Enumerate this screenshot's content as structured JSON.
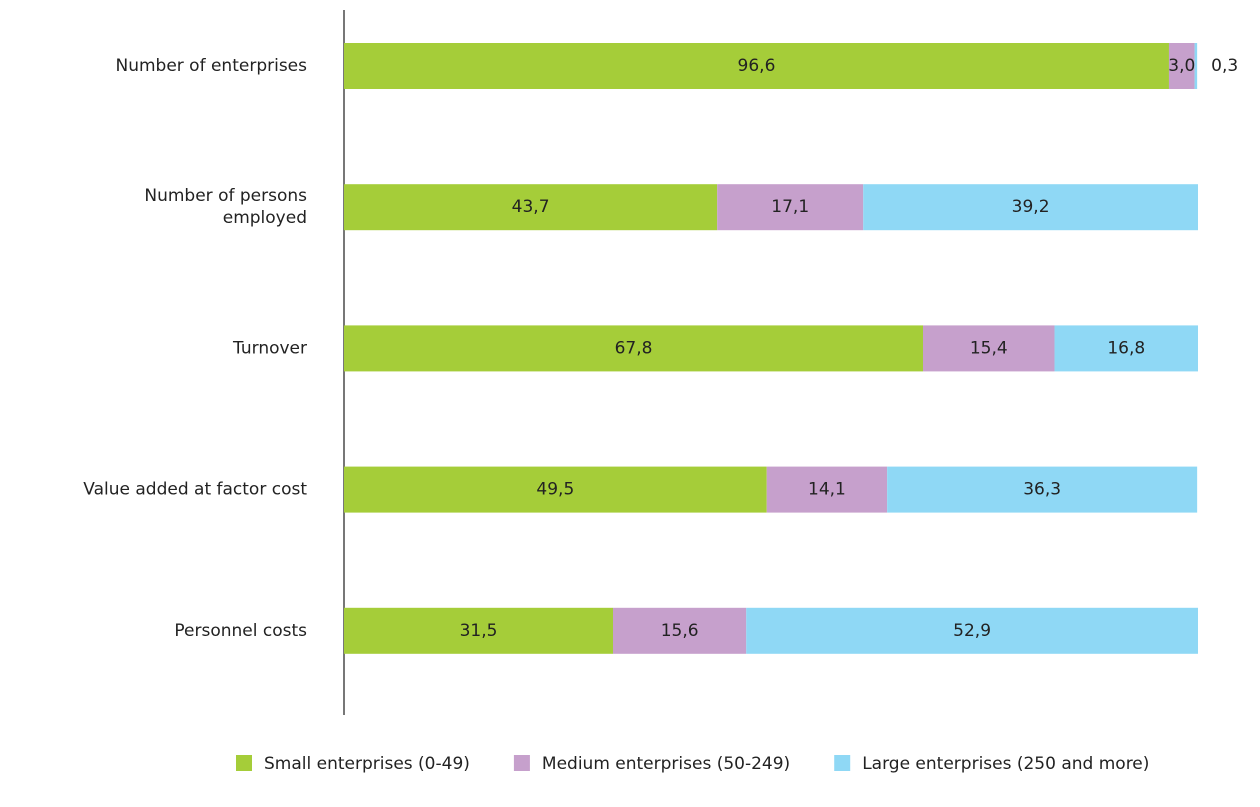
{
  "chart_data": {
    "type": "stacked-bar-horizontal",
    "categories": [
      "Number of enterprises",
      "Number of persons employed",
      "Turnover",
      "Value added at factor cost",
      "Personnel costs"
    ],
    "xlim": [
      0,
      100
    ],
    "legend": "bottom",
    "series": [
      {
        "name": "Small enterprises (0-49)",
        "color": "#a5cd39",
        "values": [
          96.6,
          43.7,
          67.8,
          49.5,
          31.5
        ],
        "value_labels": [
          "96,6",
          "43,7",
          "67,8",
          "49,5",
          "31,5"
        ]
      },
      {
        "name": "Medium enterprises (50-249)",
        "color": "#c6a0cc",
        "values": [
          3.0,
          17.1,
          15.4,
          14.1,
          15.6
        ],
        "value_labels": [
          "3,0",
          "17,1",
          "15,4",
          "14,1",
          "15,6"
        ]
      },
      {
        "name": "Large enterprises (250 and more)",
        "color": "#8fd8f5",
        "values": [
          0.3,
          39.2,
          16.8,
          36.3,
          52.9
        ],
        "value_labels": [
          "0,3",
          "39,2",
          "16,8",
          "36,3",
          "52,9"
        ]
      }
    ]
  }
}
